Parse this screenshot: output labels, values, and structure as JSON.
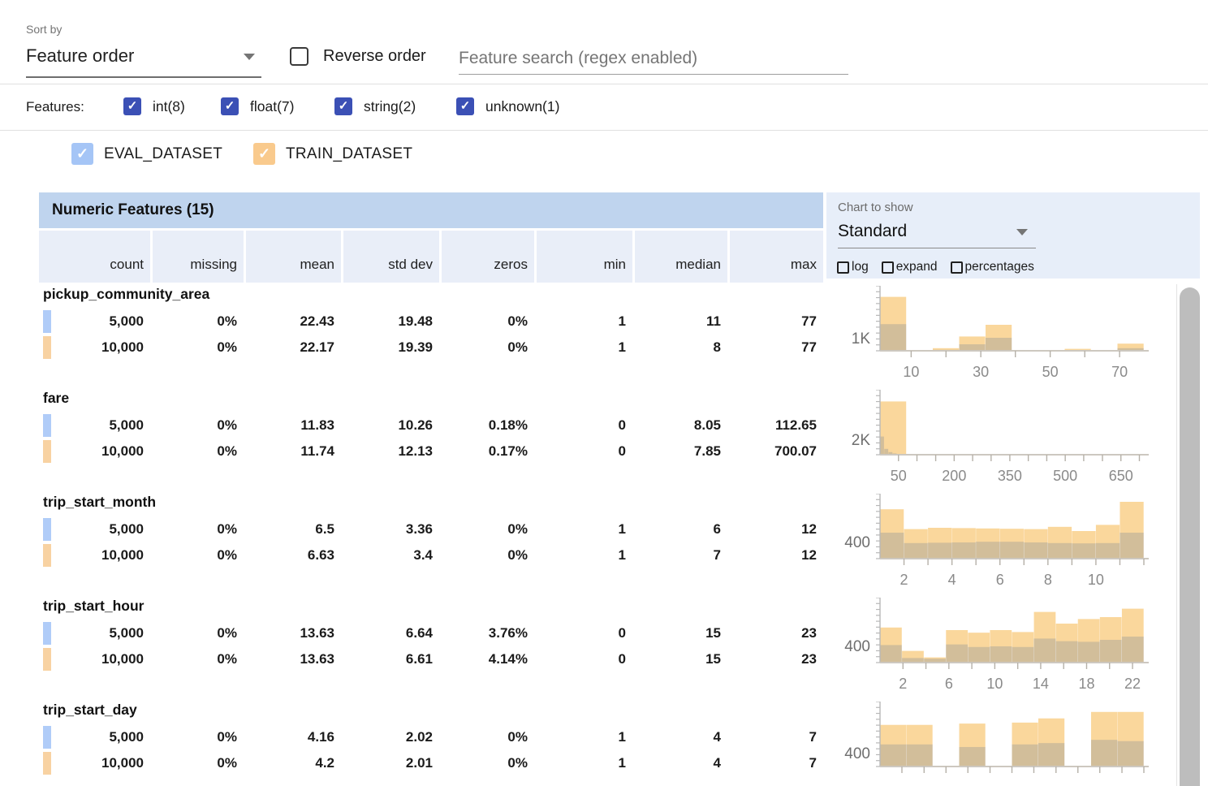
{
  "toolbar": {
    "sort_by_label": "Sort by",
    "sort_by_value": "Feature order",
    "reverse_order_label": "Reverse order",
    "reverse_order_checked": false,
    "search_placeholder": "Feature search (regex enabled)",
    "search_value": ""
  },
  "feature_filters": {
    "label": "Features:",
    "items": [
      {
        "label": "int(8)",
        "checked": true
      },
      {
        "label": "float(7)",
        "checked": true
      },
      {
        "label": "string(2)",
        "checked": true
      },
      {
        "label": "unknown(1)",
        "checked": true
      }
    ]
  },
  "datasets": [
    {
      "name": "EVAL_DATASET",
      "checked": true,
      "checkbox_color": "#a5c5f6",
      "swatch_color": "#b0ccf8"
    },
    {
      "name": "TRAIN_DATASET",
      "checked": true,
      "checkbox_color": "#f9ca8d",
      "swatch_color": "#f8d2a2"
    }
  ],
  "table": {
    "title": "Numeric Features (15)",
    "columns": [
      "count",
      "missing",
      "mean",
      "std dev",
      "zeros",
      "min",
      "median",
      "max"
    ],
    "features": [
      {
        "name": "pickup_community_area",
        "rows": [
          [
            "5,000",
            "0%",
            "22.43",
            "19.48",
            "0%",
            "1",
            "11",
            "77"
          ],
          [
            "10,000",
            "0%",
            "22.17",
            "19.39",
            "0%",
            "1",
            "8",
            "77"
          ]
        ]
      },
      {
        "name": "fare",
        "rows": [
          [
            "5,000",
            "0%",
            "11.83",
            "10.26",
            "0.18%",
            "0",
            "8.05",
            "112.65"
          ],
          [
            "10,000",
            "0%",
            "11.74",
            "12.13",
            "0.17%",
            "0",
            "7.85",
            "700.07"
          ]
        ]
      },
      {
        "name": "trip_start_month",
        "rows": [
          [
            "5,000",
            "0%",
            "6.5",
            "3.36",
            "0%",
            "1",
            "6",
            "12"
          ],
          [
            "10,000",
            "0%",
            "6.63",
            "3.4",
            "0%",
            "1",
            "7",
            "12"
          ]
        ]
      },
      {
        "name": "trip_start_hour",
        "rows": [
          [
            "5,000",
            "0%",
            "13.63",
            "6.64",
            "3.76%",
            "0",
            "15",
            "23"
          ],
          [
            "10,000",
            "0%",
            "13.63",
            "6.61",
            "4.14%",
            "0",
            "15",
            "23"
          ]
        ]
      },
      {
        "name": "trip_start_day",
        "rows": [
          [
            "5,000",
            "0%",
            "4.16",
            "2.02",
            "0%",
            "1",
            "4",
            "7"
          ],
          [
            "10,000",
            "0%",
            "4.2",
            "2.01",
            "0%",
            "1",
            "4",
            "7"
          ]
        ]
      }
    ]
  },
  "chart_controls": {
    "label": "Chart to show",
    "value": "Standard",
    "options": [
      {
        "label": "log",
        "checked": false
      },
      {
        "label": "expand",
        "checked": false
      },
      {
        "label": "percentages",
        "checked": false
      }
    ]
  },
  "colors": {
    "filter_checkbox": "#3b50b5",
    "eval_bar": "#4285f4",
    "train_bar": "#f5a623",
    "table_title_bg": "#bfd4ee",
    "table_subheader_bg": "#e9eef8",
    "chart_panel_bg": "#e7eef9"
  },
  "chart_data": [
    {
      "feature": "pickup_community_area",
      "type": "histogram-overlay",
      "ylabel": "1K",
      "ylabel_value": 1000,
      "ymax": 5800,
      "x_range": [
        1,
        77
      ],
      "xticks": [
        0.118,
        0.25,
        0.382,
        0.513,
        0.645,
        0.776,
        0.908
      ],
      "xlabels": [
        {
          "p": 0.118,
          "t": "10"
        },
        {
          "p": 0.382,
          "t": "30"
        },
        {
          "p": 0.645,
          "t": "50"
        },
        {
          "p": 0.908,
          "t": "70"
        }
      ],
      "series": [
        {
          "name": "EVAL_DATASET",
          "color": "#4285f4",
          "opacity": 0.38,
          "bars": [
            {
              "x": 0,
              "w": 0.1,
              "v": 2378
            },
            {
              "x": 0.1,
              "w": 0.1,
              "v": 35
            },
            {
              "x": 0.2,
              "w": 0.1,
              "v": 87
            },
            {
              "x": 0.3,
              "w": 0.1,
              "v": 580
            },
            {
              "x": 0.4,
              "w": 0.1,
              "v": 1160
            },
            {
              "x": 0.5,
              "w": 0.1,
              "v": 29
            },
            {
              "x": 0.6,
              "w": 0.1,
              "v": 29
            },
            {
              "x": 0.7,
              "w": 0.1,
              "v": 58
            },
            {
              "x": 0.8,
              "w": 0.1,
              "v": 23
            },
            {
              "x": 0.9,
              "w": 0.1,
              "v": 232
            }
          ]
        },
        {
          "name": "TRAIN_DATASET",
          "color": "#f5a623",
          "opacity": 0.45,
          "bars": [
            {
              "x": 0,
              "w": 0.1,
              "v": 4814
            },
            {
              "x": 0.1,
              "w": 0.1,
              "v": 58
            },
            {
              "x": 0.2,
              "w": 0.1,
              "v": 232
            },
            {
              "x": 0.3,
              "w": 0.1,
              "v": 1276
            },
            {
              "x": 0.4,
              "w": 0.1,
              "v": 2320
            },
            {
              "x": 0.5,
              "w": 0.1,
              "v": 46
            },
            {
              "x": 0.6,
              "w": 0.1,
              "v": 46
            },
            {
              "x": 0.7,
              "w": 0.1,
              "v": 174
            },
            {
              "x": 0.8,
              "w": 0.1,
              "v": 35
            },
            {
              "x": 0.9,
              "w": 0.1,
              "v": 638
            }
          ]
        }
      ]
    },
    {
      "feature": "fare",
      "type": "histogram-overlay",
      "ylabel": "2K",
      "ylabel_value": 2000,
      "ymax": 9500,
      "x_range": [
        0,
        712
      ],
      "xticks": [
        0.07,
        0.14,
        0.211,
        0.281,
        0.351,
        0.421,
        0.492,
        0.562,
        0.632,
        0.702,
        0.772,
        0.843,
        0.913,
        0.983
      ],
      "xlabels": [
        {
          "p": 0.07,
          "t": "50"
        },
        {
          "p": 0.281,
          "t": "200"
        },
        {
          "p": 0.492,
          "t": "350"
        },
        {
          "p": 0.702,
          "t": "500"
        },
        {
          "p": 0.913,
          "t": "650"
        }
      ],
      "series": [
        {
          "name": "EVAL_DATASET",
          "color": "#4285f4",
          "opacity": 0.38,
          "bars": [
            {
              "x": 0,
              "w": 0.016,
              "v": 2660
            },
            {
              "x": 0.016,
              "w": 0.016,
              "v": 855
            },
            {
              "x": 0.032,
              "w": 0.016,
              "v": 380
            },
            {
              "x": 0.048,
              "w": 0.016,
              "v": 190
            },
            {
              "x": 0.064,
              "w": 0.016,
              "v": 95
            },
            {
              "x": 0.08,
              "w": 0.016,
              "v": 57
            }
          ]
        },
        {
          "name": "TRAIN_DATASET",
          "color": "#f5a623",
          "opacity": 0.45,
          "bars": [
            {
              "x": 0,
              "w": 0.1,
              "v": 7790
            },
            {
              "x": 0.1,
              "w": 0.1,
              "v": 40
            },
            {
              "x": 0.2,
              "w": 0.1,
              "v": 40
            },
            {
              "x": 0.3,
              "w": 0.1,
              "v": 38
            },
            {
              "x": 0.4,
              "w": 0.1,
              "v": 38
            },
            {
              "x": 0.5,
              "w": 0.1,
              "v": 38
            },
            {
              "x": 0.6,
              "w": 0.1,
              "v": 38
            },
            {
              "x": 0.7,
              "w": 0.1,
              "v": 38
            },
            {
              "x": 0.8,
              "w": 0.1,
              "v": 38
            },
            {
              "x": 0.9,
              "w": 0.1,
              "v": 38
            }
          ]
        }
      ]
    },
    {
      "feature": "trip_start_month",
      "type": "histogram-overlay",
      "ylabel": "400",
      "ylabel_value": 400,
      "ymax": 1680,
      "x_range": [
        1,
        12
      ],
      "xticks": [
        0.0909,
        0.1818,
        0.2727,
        0.3636,
        0.4545,
        0.5455,
        0.6364,
        0.7273,
        0.8182,
        0.9091,
        1.0
      ],
      "xlabels": [
        {
          "p": 0.0909,
          "t": "2"
        },
        {
          "p": 0.2727,
          "t": "4"
        },
        {
          "p": 0.4545,
          "t": "6"
        },
        {
          "p": 0.6364,
          "t": "8"
        },
        {
          "p": 0.8182,
          "t": "10"
        }
      ],
      "series": [
        {
          "name": "EVAL_DATASET",
          "color": "#4285f4",
          "opacity": 0.38,
          "bars": [
            {
              "x": 0,
              "w": 0.0909,
              "v": 672
            },
            {
              "x": 0.0909,
              "w": 0.0909,
              "v": 403
            },
            {
              "x": 0.1818,
              "w": 0.0909,
              "v": 412
            },
            {
              "x": 0.2727,
              "w": 0.0909,
              "v": 420
            },
            {
              "x": 0.3636,
              "w": 0.0909,
              "v": 437
            },
            {
              "x": 0.4545,
              "w": 0.0909,
              "v": 437
            },
            {
              "x": 0.5455,
              "w": 0.0909,
              "v": 420
            },
            {
              "x": 0.6364,
              "w": 0.0909,
              "v": 403
            },
            {
              "x": 0.7273,
              "w": 0.0909,
              "v": 395
            },
            {
              "x": 0.8182,
              "w": 0.0909,
              "v": 403
            },
            {
              "x": 0.9091,
              "w": 0.0909,
              "v": 672
            }
          ]
        },
        {
          "name": "TRAIN_DATASET",
          "color": "#f5a623",
          "opacity": 0.45,
          "bars": [
            {
              "x": 0,
              "w": 0.0909,
              "v": 1277
            },
            {
              "x": 0.0909,
              "w": 0.0909,
              "v": 764
            },
            {
              "x": 0.1818,
              "w": 0.0909,
              "v": 798
            },
            {
              "x": 0.2727,
              "w": 0.0909,
              "v": 790
            },
            {
              "x": 0.3636,
              "w": 0.0909,
              "v": 781
            },
            {
              "x": 0.4545,
              "w": 0.0909,
              "v": 773
            },
            {
              "x": 0.5455,
              "w": 0.0909,
              "v": 764
            },
            {
              "x": 0.6364,
              "w": 0.0909,
              "v": 823
            },
            {
              "x": 0.7273,
              "w": 0.0909,
              "v": 714
            },
            {
              "x": 0.8182,
              "w": 0.0909,
              "v": 874
            },
            {
              "x": 0.9091,
              "w": 0.0909,
              "v": 1470
            }
          ]
        }
      ]
    },
    {
      "feature": "trip_start_hour",
      "type": "histogram-overlay",
      "ylabel": "400",
      "ylabel_value": 400,
      "ymax": 1680,
      "x_range": [
        0,
        23
      ],
      "xticks": [
        0.087,
        0.174,
        0.261,
        0.348,
        0.435,
        0.522,
        0.609,
        0.696,
        0.783,
        0.87,
        0.957
      ],
      "xlabels": [
        {
          "p": 0.087,
          "t": "2"
        },
        {
          "p": 0.261,
          "t": "6"
        },
        {
          "p": 0.435,
          "t": "10"
        },
        {
          "p": 0.609,
          "t": "14"
        },
        {
          "p": 0.783,
          "t": "18"
        },
        {
          "p": 0.957,
          "t": "22"
        }
      ],
      "series": [
        {
          "name": "EVAL_DATASET",
          "color": "#4285f4",
          "opacity": 0.38,
          "bars": [
            {
              "x": 0,
              "w": 0.0833,
              "v": 454
            },
            {
              "x": 0.0833,
              "w": 0.0833,
              "v": 118
            },
            {
              "x": 0.1667,
              "w": 0.0833,
              "v": 101
            },
            {
              "x": 0.25,
              "w": 0.0833,
              "v": 470
            },
            {
              "x": 0.3333,
              "w": 0.0833,
              "v": 403
            },
            {
              "x": 0.4167,
              "w": 0.0833,
              "v": 420
            },
            {
              "x": 0.5,
              "w": 0.0833,
              "v": 403
            },
            {
              "x": 0.5833,
              "w": 0.0833,
              "v": 622
            },
            {
              "x": 0.6667,
              "w": 0.0833,
              "v": 554
            },
            {
              "x": 0.75,
              "w": 0.0833,
              "v": 538
            },
            {
              "x": 0.8333,
              "w": 0.0833,
              "v": 588
            },
            {
              "x": 0.9167,
              "w": 0.0833,
              "v": 672
            }
          ]
        },
        {
          "name": "TRAIN_DATASET",
          "color": "#f5a623",
          "opacity": 0.45,
          "bars": [
            {
              "x": 0,
              "w": 0.0833,
              "v": 907
            },
            {
              "x": 0.0833,
              "w": 0.0833,
              "v": 302
            },
            {
              "x": 0.1667,
              "w": 0.0833,
              "v": 134
            },
            {
              "x": 0.25,
              "w": 0.0833,
              "v": 840
            },
            {
              "x": 0.3333,
              "w": 0.0833,
              "v": 773
            },
            {
              "x": 0.4167,
              "w": 0.0833,
              "v": 840
            },
            {
              "x": 0.5,
              "w": 0.0833,
              "v": 790
            },
            {
              "x": 0.5833,
              "w": 0.0833,
              "v": 1310
            },
            {
              "x": 0.6667,
              "w": 0.0833,
              "v": 1008
            },
            {
              "x": 0.75,
              "w": 0.0833,
              "v": 1126
            },
            {
              "x": 0.8333,
              "w": 0.0833,
              "v": 1176
            },
            {
              "x": 0.9167,
              "w": 0.0833,
              "v": 1394
            }
          ]
        }
      ]
    },
    {
      "feature": "trip_start_day",
      "type": "histogram-overlay",
      "ylabel": "400",
      "ylabel_value": 400,
      "ymax": 2130,
      "x_range": [
        1,
        7
      ],
      "xticks": [
        0.083,
        0.167,
        0.25,
        0.333,
        0.417,
        0.5,
        0.583,
        0.667,
        0.75,
        0.833,
        0.917,
        1.0
      ],
      "xlabels": [],
      "series": [
        {
          "name": "EVAL_DATASET",
          "color": "#4285f4",
          "opacity": 0.38,
          "bars": [
            {
              "x": 0,
              "w": 0.1,
              "v": 725
            },
            {
              "x": 0.1,
              "w": 0.1,
              "v": 725
            },
            {
              "x": 0.3,
              "w": 0.1,
              "v": 640
            },
            {
              "x": 0.5,
              "w": 0.1,
              "v": 725
            },
            {
              "x": 0.6,
              "w": 0.1,
              "v": 768
            },
            {
              "x": 0.8,
              "w": 0.1,
              "v": 875
            },
            {
              "x": 0.9,
              "w": 0.1,
              "v": 832
            }
          ]
        },
        {
          "name": "TRAIN_DATASET",
          "color": "#f5a623",
          "opacity": 0.45,
          "bars": [
            {
              "x": 0,
              "w": 0.1,
              "v": 1365
            },
            {
              "x": 0.1,
              "w": 0.1,
              "v": 1365
            },
            {
              "x": 0.3,
              "w": 0.1,
              "v": 1408
            },
            {
              "x": 0.5,
              "w": 0.1,
              "v": 1440
            },
            {
              "x": 0.6,
              "w": 0.1,
              "v": 1578
            },
            {
              "x": 0.8,
              "w": 0.1,
              "v": 1790
            },
            {
              "x": 0.9,
              "w": 0.1,
              "v": 1790
            }
          ]
        }
      ]
    }
  ]
}
